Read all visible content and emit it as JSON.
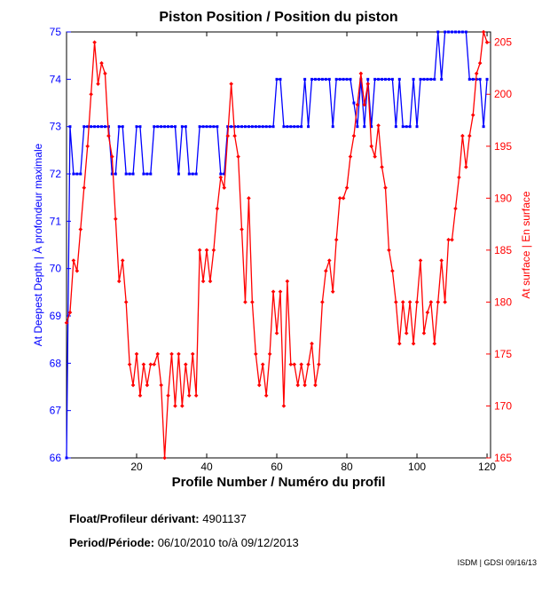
{
  "chart_data": {
    "type": "line",
    "title": "Piston Position / Position du piston",
    "xlabel": "Profile Number / Numéro du profil",
    "ylabel_left": "At Deepest Depth | À profondeur maximale",
    "ylabel_right": "At surface | En surface",
    "xlim": [
      0,
      121
    ],
    "xticks": [
      20,
      40,
      60,
      80,
      100,
      120
    ],
    "y_left_lim": [
      66,
      75
    ],
    "y_left_ticks": [
      66,
      67,
      68,
      69,
      70,
      71,
      72,
      73,
      74,
      75
    ],
    "y_right_lim": [
      165,
      206
    ],
    "y_right_ticks": [
      165,
      170,
      175,
      180,
      185,
      190,
      195,
      200,
      205
    ],
    "series": [
      {
        "name": "At Deepest Depth",
        "axis": "left",
        "color": "#0000ff",
        "x": [
          0,
          1,
          2,
          3,
          4,
          5,
          6,
          7,
          8,
          9,
          10,
          11,
          12,
          13,
          14,
          15,
          16,
          17,
          18,
          19,
          20,
          21,
          22,
          23,
          24,
          25,
          26,
          27,
          28,
          29,
          30,
          31,
          32,
          33,
          34,
          35,
          36,
          37,
          38,
          39,
          40,
          41,
          42,
          43,
          44,
          45,
          46,
          47,
          48,
          49,
          50,
          51,
          52,
          53,
          54,
          55,
          56,
          57,
          58,
          59,
          60,
          61,
          62,
          63,
          64,
          65,
          66,
          67,
          68,
          69,
          70,
          71,
          72,
          73,
          74,
          75,
          76,
          77,
          78,
          79,
          80,
          81,
          82,
          83,
          84,
          85,
          86,
          87,
          88,
          89,
          90,
          91,
          92,
          93,
          94,
          95,
          96,
          97,
          98,
          99,
          100,
          101,
          102,
          103,
          104,
          105,
          106,
          107,
          108,
          109,
          110,
          111,
          112,
          113,
          114,
          115,
          116,
          117,
          118,
          119,
          120
        ],
        "values": [
          66,
          73,
          72,
          72,
          72,
          73,
          73,
          73,
          73,
          73,
          73,
          73,
          73,
          72,
          72,
          73,
          73,
          72,
          72,
          72,
          73,
          73,
          72,
          72,
          72,
          73,
          73,
          73,
          73,
          73,
          73,
          73,
          72,
          73,
          73,
          72,
          72,
          72,
          73,
          73,
          73,
          73,
          73,
          73,
          72,
          72,
          73,
          73,
          73,
          73,
          73,
          73,
          73,
          73,
          73,
          73,
          73,
          73,
          73,
          73,
          74,
          74,
          73,
          73,
          73,
          73,
          73,
          73,
          74,
          73,
          74,
          74,
          74,
          74,
          74,
          74,
          73,
          74,
          74,
          74,
          74,
          74,
          73.5,
          73,
          74,
          73,
          74,
          73,
          74,
          74,
          74,
          74,
          74,
          74,
          73,
          74,
          73,
          73,
          73,
          74,
          73,
          74,
          74,
          74,
          74,
          74,
          75,
          74,
          75,
          75,
          75,
          75,
          75,
          75,
          75,
          74,
          74,
          74,
          74,
          73,
          74
        ]
      },
      {
        "name": "At surface",
        "axis": "right",
        "color": "#ff0000",
        "x": [
          0,
          1,
          2,
          3,
          4,
          5,
          6,
          7,
          8,
          9,
          10,
          11,
          12,
          13,
          14,
          15,
          16,
          17,
          18,
          19,
          20,
          21,
          22,
          23,
          24,
          25,
          26,
          27,
          28,
          29,
          30,
          31,
          32,
          33,
          34,
          35,
          36,
          37,
          38,
          39,
          40,
          41,
          42,
          43,
          44,
          45,
          46,
          47,
          48,
          49,
          50,
          51,
          52,
          53,
          54,
          55,
          56,
          57,
          58,
          59,
          60,
          61,
          62,
          63,
          64,
          65,
          66,
          67,
          68,
          69,
          70,
          71,
          72,
          73,
          74,
          75,
          76,
          77,
          78,
          79,
          80,
          81,
          82,
          83,
          84,
          85,
          86,
          87,
          88,
          89,
          90,
          91,
          92,
          93,
          94,
          95,
          96,
          97,
          98,
          99,
          100,
          101,
          102,
          103,
          104,
          105,
          106,
          107,
          108,
          109,
          110,
          111,
          112,
          113,
          114,
          115,
          116,
          117,
          118,
          119,
          120
        ],
        "values": [
          178,
          179,
          184,
          183,
          187,
          191,
          195,
          200,
          205,
          201,
          203,
          202,
          196,
          194,
          188,
          182,
          184,
          180,
          174,
          172,
          175,
          171,
          174,
          172,
          174,
          174,
          175,
          172,
          165,
          171,
          175,
          170,
          175,
          170,
          174,
          171,
          175,
          171,
          185,
          182,
          185,
          182,
          185,
          189,
          192,
          191,
          196,
          201,
          196,
          194,
          187,
          180,
          190,
          180,
          175,
          172,
          174,
          171,
          175,
          181,
          177,
          181,
          170,
          182,
          174,
          174,
          172,
          174,
          172,
          174,
          176,
          172,
          174,
          180,
          183,
          184,
          181,
          186,
          190,
          190,
          191,
          194,
          196,
          199,
          202,
          199,
          201,
          195,
          194,
          197,
          193,
          191,
          185,
          183,
          180,
          176,
          180,
          177,
          180,
          176,
          180,
          184,
          177,
          179,
          180,
          176,
          180,
          184,
          180,
          186,
          186,
          189,
          192,
          196,
          193,
          196,
          198,
          202,
          203,
          206,
          205
        ]
      }
    ]
  },
  "info": {
    "float_label": "Float/Profileur dérivant:",
    "float_id": "4901137",
    "period_label": "Period/Période:",
    "period_start": "06/10/2010",
    "period_sep": "to/à",
    "period_end": "09/12/2013"
  },
  "credit": "ISDM | GDSI 09/16/13"
}
